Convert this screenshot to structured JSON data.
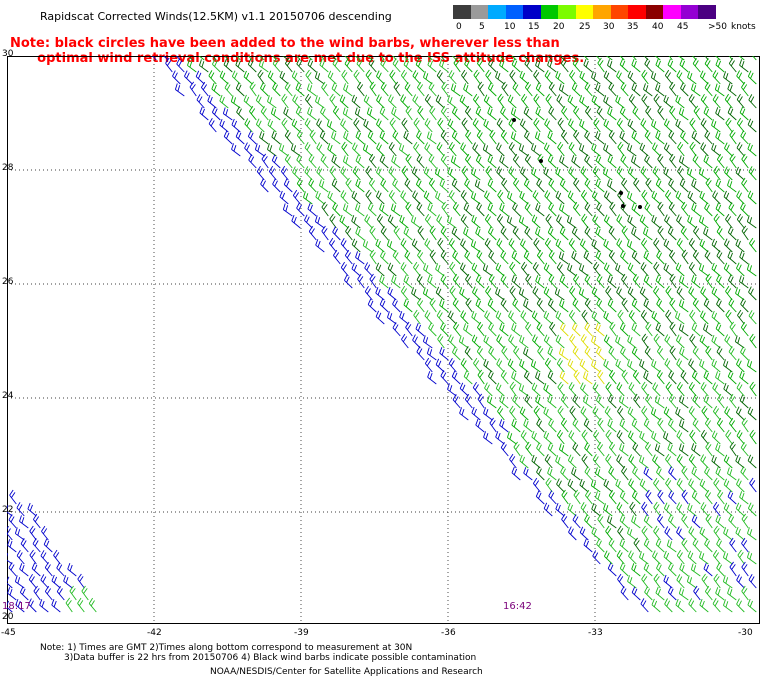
{
  "header": {
    "title": "Rapidscat Corrected Winds(12.5KM) v1.1 20150706 descending",
    "note_line1": "Note: black circles have been added to the wind barbs, wherever less than",
    "note_line2": "      optimal wind retrieval conditions are met due to the ISS attitude changes."
  },
  "colorbar": {
    "unit": "knots",
    "colors": [
      "#3c3c3c",
      "#9a9a9a",
      "#00aaff",
      "#0060ff",
      "#0000c8",
      "#00c800",
      "#7cfc00",
      "#ffff00",
      "#ffa500",
      "#ff4500",
      "#ff0000",
      "#8b0000",
      "#ff00ff",
      "#9400d3",
      "#4b0082"
    ],
    "labels": [
      "0",
      "5",
      "10",
      "15",
      "20",
      "25",
      "30",
      "35",
      "40",
      "45",
      ">50"
    ]
  },
  "map": {
    "lat_labels": [
      "30",
      "28",
      "26",
      "24",
      "22",
      "20"
    ],
    "lon_labels": [
      "-45",
      "-42",
      "-39",
      "-36",
      "-33",
      "-30"
    ],
    "time_labels": [
      "18:17",
      "16:42"
    ],
    "lon_range": [
      -45,
      -30
    ],
    "lat_range": [
      20,
      30
    ],
    "grid": "dotted",
    "wind_colors": {
      "light": "#22bb22",
      "medium": "#00aa00",
      "dark": "#006400",
      "blue": "#0000cc",
      "yellow": "#dddd00"
    },
    "flag_color": "#000000"
  },
  "footer": {
    "line1": "Note: 1) Times are GMT 2)Times along bottom correspond to measurement at 30N",
    "line2": "3)Data buffer is 22 hrs from 20150706 4) Black wind barbs indicate possible contamination",
    "line3": "NOAA/NESDIS/Center for Satellite Applications and Research"
  }
}
